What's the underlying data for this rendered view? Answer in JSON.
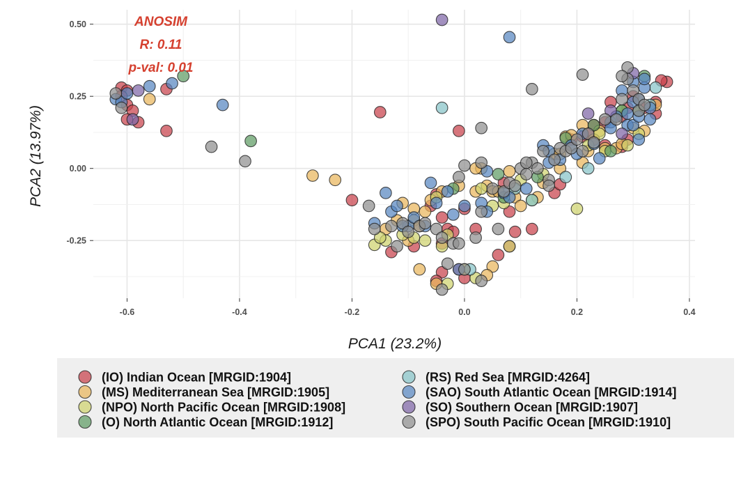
{
  "chart_data": {
    "type": "scatter",
    "xlabel": "PCA1 (23.2%)",
    "ylabel": "PCA2 (13.97%)",
    "xlim": [
      -0.66,
      0.41
    ],
    "ylim": [
      -0.45,
      0.55
    ],
    "x_ticks": [
      -0.6,
      -0.4,
      -0.2,
      0.0,
      0.2,
      0.4
    ],
    "x_tick_labels": [
      "-0.6",
      "-0.4",
      "-0.2",
      "0.0",
      "0.2",
      "0.4"
    ],
    "y_ticks": [
      0.5,
      0.25,
      0.0,
      -0.25
    ],
    "y_tick_labels": [
      "0.50",
      "0.25",
      "0.00",
      "-0.25"
    ],
    "grid": true,
    "legend_position": "bottom",
    "annotation": [
      "ANOSIM",
      "R: 0.11",
      "p-val: 0.01"
    ],
    "series": [
      {
        "name": "(IO) Indian Ocean [MRGID:1904]",
        "color": "#c8414b",
        "points": [
          [
            -0.61,
            0.28
          ],
          [
            -0.6,
            0.27
          ],
          [
            -0.61,
            0.25
          ],
          [
            -0.6,
            0.22
          ],
          [
            -0.59,
            0.2
          ],
          [
            -0.6,
            0.17
          ],
          [
            -0.58,
            0.16
          ],
          [
            -0.53,
            0.275
          ],
          [
            -0.53,
            0.13
          ],
          [
            -0.15,
            0.195
          ],
          [
            -0.01,
            0.13
          ],
          [
            -0.2,
            -0.11
          ],
          [
            -0.05,
            -0.09
          ],
          [
            -0.04,
            -0.17
          ],
          [
            -0.03,
            -0.21
          ],
          [
            -0.04,
            -0.26
          ],
          [
            -0.09,
            -0.27
          ],
          [
            -0.13,
            -0.29
          ],
          [
            -0.04,
            -0.36
          ],
          [
            -0.05,
            -0.39
          ],
          [
            -0.02,
            -0.22
          ],
          [
            -0.01,
            -0.35
          ],
          [
            0.0,
            -0.38
          ],
          [
            0.02,
            -0.21
          ],
          [
            0.06,
            -0.3
          ],
          [
            0.08,
            -0.15
          ],
          [
            0.09,
            -0.22
          ],
          [
            0.12,
            -0.21
          ],
          [
            0.16,
            -0.085
          ],
          [
            0.17,
            -0.055
          ],
          [
            0.21,
            0.11
          ],
          [
            0.23,
            0.1
          ],
          [
            0.25,
            0.16
          ],
          [
            0.26,
            0.23
          ],
          [
            0.28,
            0.18
          ],
          [
            0.29,
            0.1
          ],
          [
            0.29,
            0.21
          ],
          [
            0.32,
            0.21
          ],
          [
            0.34,
            0.23
          ],
          [
            0.34,
            0.19
          ],
          [
            0.36,
            0.3
          ],
          [
            0.35,
            0.305
          ],
          [
            0.28,
            0.075
          ],
          [
            0.22,
            0.12
          ],
          [
            0.07,
            -0.05
          ],
          [
            -0.06,
            -0.13
          ],
          [
            0.0,
            -0.14
          ],
          [
            0.19,
            0.1
          ],
          [
            0.25,
            0.08
          ],
          [
            0.3,
            0.25
          ],
          [
            0.23,
            0.15
          ],
          [
            0.08,
            -0.27
          ]
        ]
      },
      {
        "name": "(MS) Mediterranean Sea [MRGID:1905]",
        "color": "#e9b55c",
        "points": [
          [
            -0.56,
            0.24
          ],
          [
            -0.27,
            -0.025
          ],
          [
            -0.23,
            -0.04
          ],
          [
            -0.14,
            -0.21
          ],
          [
            -0.09,
            -0.14
          ],
          [
            -0.09,
            -0.18
          ],
          [
            -0.07,
            -0.15
          ],
          [
            -0.06,
            -0.11
          ],
          [
            -0.1,
            -0.25
          ],
          [
            -0.08,
            -0.35
          ],
          [
            -0.05,
            -0.4
          ],
          [
            -0.01,
            -0.06
          ],
          [
            0.02,
            -0.08
          ],
          [
            0.03,
            0.0
          ],
          [
            0.04,
            -0.06
          ],
          [
            0.05,
            -0.08
          ],
          [
            0.06,
            -0.08
          ],
          [
            0.08,
            -0.01
          ],
          [
            0.09,
            -0.1
          ],
          [
            0.1,
            -0.13
          ],
          [
            0.13,
            -0.1
          ],
          [
            0.16,
            0.05
          ],
          [
            0.17,
            0.05
          ],
          [
            0.18,
            0.11
          ],
          [
            0.21,
            0.15
          ],
          [
            0.22,
            0.06
          ],
          [
            0.24,
            0.13
          ],
          [
            0.25,
            0.07
          ],
          [
            0.27,
            0.07
          ],
          [
            0.28,
            0.085
          ],
          [
            0.3,
            0.14
          ],
          [
            0.32,
            0.13
          ],
          [
            0.34,
            0.22
          ],
          [
            -0.12,
            -0.18
          ],
          [
            -0.11,
            -0.12
          ],
          [
            0.05,
            -0.34
          ],
          [
            -0.04,
            -0.08
          ],
          [
            0.02,
            0.0
          ],
          [
            0.19,
            0.115
          ],
          [
            0.23,
            0.1
          ],
          [
            0.17,
            0.0
          ],
          [
            0.21,
            0.02
          ],
          [
            0.14,
            -0.05
          ],
          [
            -0.08,
            -0.2
          ],
          [
            0.04,
            -0.37
          ]
        ]
      },
      {
        "name": "(NPO) North Pacific Ocean [MRGID:1908]",
        "color": "#cfd36e",
        "points": [
          [
            -0.16,
            -0.265
          ],
          [
            -0.14,
            -0.25
          ],
          [
            -0.11,
            -0.23
          ],
          [
            -0.07,
            -0.25
          ],
          [
            -0.03,
            -0.4
          ],
          [
            -0.04,
            -0.27
          ],
          [
            0.0,
            -0.35
          ],
          [
            0.02,
            -0.38
          ],
          [
            0.08,
            -0.27
          ],
          [
            0.07,
            -0.12
          ],
          [
            0.12,
            -0.11
          ],
          [
            0.2,
            -0.14
          ],
          [
            0.25,
            0.06
          ],
          [
            0.29,
            0.08
          ],
          [
            0.24,
            0.12
          ],
          [
            0.03,
            -0.07
          ],
          [
            0.05,
            -0.13
          ],
          [
            -0.09,
            -0.24
          ],
          [
            0.14,
            -0.02
          ],
          [
            0.22,
            0.08
          ],
          [
            0.1,
            -0.04
          ],
          [
            -0.05,
            -0.1
          ],
          [
            0.28,
            0.2
          ],
          [
            -0.03,
            -0.23
          ],
          [
            -0.15,
            -0.24
          ],
          [
            0.31,
            0.12
          ]
        ]
      },
      {
        "name": "(O) North Atlantic Ocean [MRGID:1912]",
        "color": "#5e9b64",
        "points": [
          [
            -0.5,
            0.32
          ],
          [
            -0.38,
            0.095
          ],
          [
            0.06,
            -0.02
          ],
          [
            0.18,
            0.105
          ],
          [
            0.32,
            0.32
          ],
          [
            0.31,
            0.2
          ],
          [
            0.28,
            0.2
          ],
          [
            0.26,
            0.06
          ],
          [
            0.07,
            -0.1
          ],
          [
            -0.02,
            -0.07
          ],
          [
            0.13,
            -0.03
          ],
          [
            0.23,
            0.15
          ]
        ]
      },
      {
        "name": "(RS) Red Sea [MRGID:4264]",
        "color": "#86c3c8",
        "points": [
          [
            -0.04,
            0.21
          ],
          [
            0.34,
            0.28
          ],
          [
            0.33,
            0.22
          ],
          [
            0.12,
            -0.11
          ],
          [
            0.01,
            -0.35
          ],
          [
            0.18,
            -0.03
          ],
          [
            0.22,
            0.0
          ],
          [
            0.09,
            -0.07
          ]
        ]
      },
      {
        "name": "(SAO) South Atlantic Ocean [MRGID:1914]",
        "color": "#5886c1",
        "points": [
          [
            -0.62,
            0.24
          ],
          [
            -0.61,
            0.23
          ],
          [
            -0.6,
            0.26
          ],
          [
            -0.56,
            0.285
          ],
          [
            -0.52,
            0.295
          ],
          [
            -0.43,
            0.22
          ],
          [
            0.08,
            0.455
          ],
          [
            -0.14,
            -0.085
          ],
          [
            -0.16,
            -0.19
          ],
          [
            -0.13,
            -0.15
          ],
          [
            -0.12,
            -0.13
          ],
          [
            -0.1,
            -0.2
          ],
          [
            -0.09,
            -0.17
          ],
          [
            -0.07,
            -0.2
          ],
          [
            -0.06,
            -0.05
          ],
          [
            -0.05,
            -0.12
          ],
          [
            -0.03,
            -0.08
          ],
          [
            -0.02,
            -0.16
          ],
          [
            0.0,
            -0.13
          ],
          [
            0.03,
            -0.12
          ],
          [
            0.04,
            -0.15
          ],
          [
            0.07,
            -0.085
          ],
          [
            0.08,
            -0.1
          ],
          [
            0.11,
            -0.07
          ],
          [
            0.14,
            0.08
          ],
          [
            0.15,
            0.06
          ],
          [
            0.17,
            0.03
          ],
          [
            0.19,
            0.08
          ],
          [
            0.21,
            0.12
          ],
          [
            0.23,
            0.085
          ],
          [
            0.24,
            0.035
          ],
          [
            0.26,
            0.16
          ],
          [
            0.27,
            0.18
          ],
          [
            0.29,
            0.15
          ],
          [
            0.3,
            0.15
          ],
          [
            0.31,
            0.24
          ],
          [
            0.32,
            0.28
          ],
          [
            0.33,
            0.21
          ],
          [
            0.33,
            0.17
          ],
          [
            0.31,
            0.1
          ],
          [
            0.29,
            0.19
          ],
          [
            0.28,
            0.27
          ],
          [
            0.3,
            0.3
          ],
          [
            0.3,
            0.23
          ],
          [
            0.32,
            0.31
          ],
          [
            0.2,
            0.05
          ],
          [
            -0.01,
            -0.35
          ],
          [
            -0.11,
            -0.2
          ],
          [
            0.04,
            -0.01
          ],
          [
            0.15,
            0.02
          ],
          [
            0.26,
            0.14
          ],
          [
            0.31,
            0.18
          ]
        ]
      },
      {
        "name": "(SO) Southern Ocean [MRGID:1907]",
        "color": "#7e65a6",
        "points": [
          [
            -0.04,
            0.515
          ],
          [
            -0.58,
            0.27
          ],
          [
            -0.59,
            0.17
          ],
          [
            0.22,
            0.19
          ],
          [
            0.3,
            0.33
          ],
          [
            0.26,
            0.2
          ],
          [
            0.28,
            0.12
          ]
        ]
      },
      {
        "name": "(SPO) South Pacific Ocean [MRGID:1910]",
        "color": "#8f8f8f",
        "points": [
          [
            -0.62,
            0.26
          ],
          [
            -0.61,
            0.21
          ],
          [
            -0.45,
            0.075
          ],
          [
            -0.39,
            0.025
          ],
          [
            0.03,
            0.14
          ],
          [
            0.12,
            0.275
          ],
          [
            0.21,
            0.325
          ],
          [
            -0.17,
            -0.13
          ],
          [
            -0.13,
            -0.2
          ],
          [
            -0.11,
            -0.19
          ],
          [
            -0.1,
            -0.22
          ],
          [
            -0.08,
            -0.2
          ],
          [
            -0.05,
            -0.21
          ],
          [
            -0.04,
            -0.24
          ],
          [
            -0.02,
            -0.26
          ],
          [
            -0.03,
            -0.33
          ],
          [
            -0.04,
            -0.42
          ],
          [
            0.0,
            -0.35
          ],
          [
            0.02,
            -0.24
          ],
          [
            0.03,
            -0.15
          ],
          [
            0.03,
            0.02
          ],
          [
            0.05,
            -0.07
          ],
          [
            0.06,
            -0.21
          ],
          [
            0.07,
            -0.08
          ],
          [
            0.08,
            -0.05
          ],
          [
            0.1,
            0.0
          ],
          [
            0.11,
            -0.02
          ],
          [
            0.12,
            0.02
          ],
          [
            0.13,
            0.0
          ],
          [
            0.14,
            0.06
          ],
          [
            0.15,
            -0.04
          ],
          [
            0.16,
            0.03
          ],
          [
            0.17,
            0.07
          ],
          [
            0.18,
            0.06
          ],
          [
            0.19,
            0.07
          ],
          [
            0.2,
            0.1
          ],
          [
            0.21,
            0.06
          ],
          [
            0.22,
            0.12
          ],
          [
            0.23,
            0.09
          ],
          [
            0.25,
            0.17
          ],
          [
            0.27,
            0.17
          ],
          [
            0.28,
            0.24
          ],
          [
            0.29,
            0.35
          ],
          [
            0.29,
            0.31
          ],
          [
            0.3,
            0.27
          ],
          [
            0.31,
            0.24
          ],
          [
            0.31,
            0.2
          ],
          [
            0.32,
            0.22
          ],
          [
            0.28,
            0.32
          ],
          [
            -0.16,
            -0.21
          ],
          [
            -0.12,
            -0.27
          ],
          [
            -0.07,
            -0.19
          ],
          [
            -0.01,
            -0.26
          ],
          [
            0.03,
            -0.39
          ],
          [
            0.09,
            -0.06
          ],
          [
            0.11,
            0.02
          ],
          [
            -0.01,
            -0.03
          ],
          [
            0.15,
            -0.06
          ],
          [
            0.0,
            0.01
          ]
        ]
      }
    ]
  }
}
